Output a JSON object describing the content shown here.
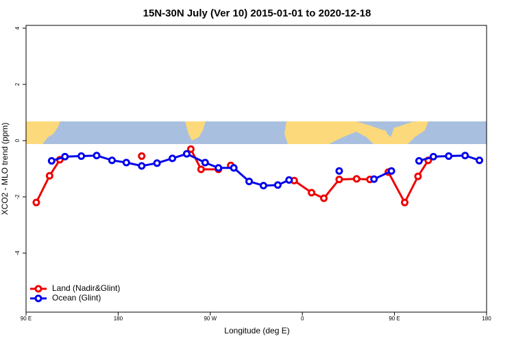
{
  "chart_data": {
    "type": "line",
    "title": "15N-30N July (Ver 10)   2015-01-01 to 2020-12-18",
    "x_label": "Longitude (deg E)",
    "y_label": "XCO2 - MLO trend (ppm)",
    "xlim": [
      90,
      540
    ],
    "xticks": [
      {
        "value": 90,
        "label": "90 E"
      },
      180,
      {
        "value": 270,
        "label": "90 W"
      },
      {
        "value": 360,
        "label": "0"
      },
      {
        "value": 450,
        "label": "90 E"
      },
      {
        "value": 540,
        "label": "180"
      }
    ],
    "ylim": [
      -6.1,
      4.1
    ],
    "yticks": [
      -4,
      -2,
      0,
      2,
      4
    ],
    "legend": "bottomleft",
    "series": [
      {
        "name": "Land (Nadir&Glint)",
        "color": "#ee0000",
        "x": [
          100,
          113,
          123,
          null,
          203,
          null,
          251,
          261,
          278,
          null,
          290,
          null,
          352,
          369,
          381,
          396,
          413,
          426,
          null,
          444,
          460,
          473,
          483
        ],
        "values": [
          -2.2,
          -1.25,
          -0.68,
          null,
          -0.55,
          null,
          -0.3,
          -1.02,
          -1.02,
          null,
          -0.88,
          null,
          -1.42,
          -1.85,
          -2.05,
          -1.38,
          -1.36,
          -1.38,
          null,
          -1.12,
          -2.2,
          -1.27,
          -0.7
        ]
      },
      {
        "name": "Ocean (Glint)",
        "color": "#0000ee",
        "x": [
          115,
          128,
          144,
          159,
          174,
          188,
          203,
          218,
          233,
          247,
          265,
          278,
          293,
          308,
          322,
          336,
          347,
          null,
          396,
          null,
          430,
          447,
          null,
          474,
          488,
          503,
          519,
          533
        ],
        "values": [
          -0.72,
          -0.57,
          -0.55,
          -0.53,
          -0.7,
          -0.78,
          -0.9,
          -0.8,
          -0.63,
          -0.47,
          -0.78,
          -0.97,
          -0.97,
          -1.45,
          -1.6,
          -1.58,
          -1.4,
          null,
          -1.08,
          null,
          -1.37,
          -1.08,
          null,
          -0.72,
          -0.57,
          -0.55,
          -0.53,
          -0.7
        ]
      }
    ]
  }
}
